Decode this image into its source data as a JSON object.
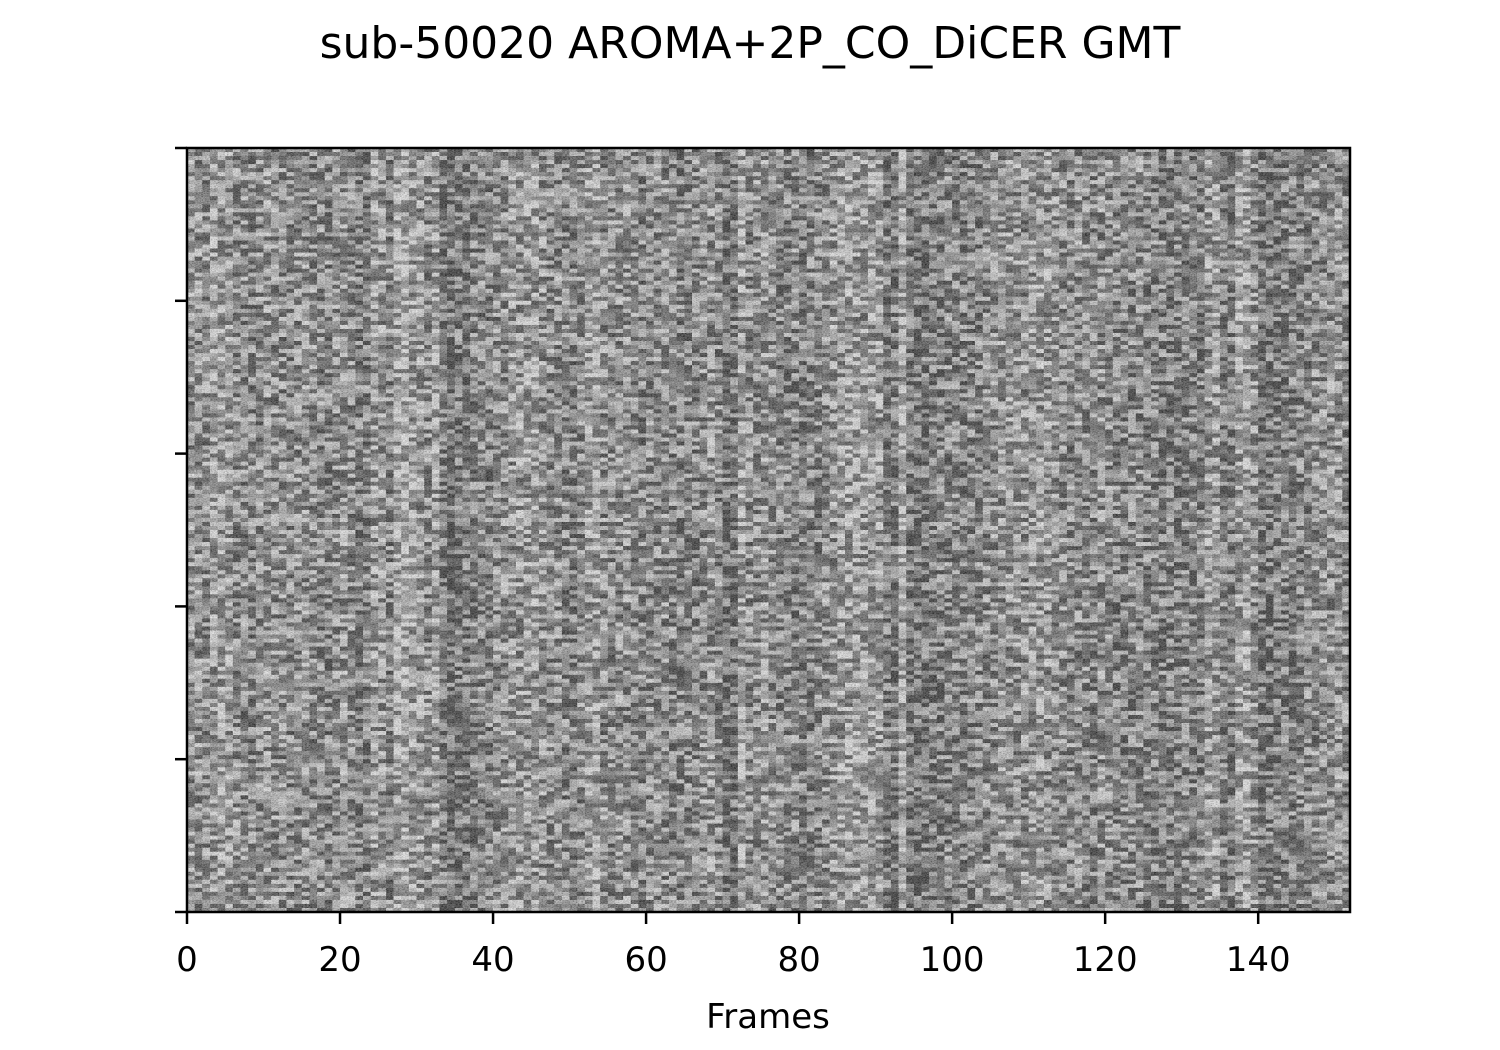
{
  "chart_data": {
    "type": "heatmap",
    "title": "sub-50020 AROMA+2P_CO_DiCER GMT",
    "xlabel": "Frames",
    "ylabel": "",
    "xlim": [
      0,
      152
    ],
    "x_ticks": [
      0,
      20,
      40,
      60,
      80,
      100,
      120,
      140
    ],
    "y_tick_count": 6,
    "y_tick_labels_shown": false,
    "colormap": "gray",
    "colormap_colors": {
      "low": "#000000",
      "high": "#ffffff"
    },
    "grid": false,
    "legend": "none",
    "columns_description": "grayscale carpet plot of voxel time series (rows = voxels, columns = frames)",
    "column_intensity_profile": [
      0.55,
      0.52,
      0.5,
      0.6,
      0.62,
      0.58,
      0.5,
      0.48,
      0.45,
      0.5,
      0.55,
      0.5,
      0.48,
      0.46,
      0.5,
      0.52,
      0.48,
      0.45,
      0.42,
      0.5,
      0.55,
      0.48,
      0.4,
      0.42,
      0.6,
      0.55,
      0.45,
      0.7,
      0.72,
      0.62,
      0.55,
      0.5,
      0.62,
      0.35,
      0.32,
      0.38,
      0.36,
      0.42,
      0.45,
      0.4,
      0.48,
      0.52,
      0.55,
      0.56,
      0.6,
      0.58,
      0.52,
      0.48,
      0.5,
      0.45,
      0.42,
      0.46,
      0.62,
      0.65,
      0.5,
      0.48,
      0.5,
      0.52,
      0.48,
      0.46,
      0.5,
      0.48,
      0.5,
      0.45,
      0.42,
      0.44,
      0.46,
      0.5,
      0.55,
      0.48,
      0.3,
      0.32,
      0.68,
      0.48,
      0.5,
      0.55,
      0.5,
      0.45,
      0.42,
      0.46,
      0.4,
      0.42,
      0.44,
      0.5,
      0.55,
      0.6,
      0.62,
      0.6,
      0.58,
      0.64,
      0.6,
      0.38,
      0.35,
      0.7,
      0.32,
      0.3,
      0.34,
      0.36,
      0.4,
      0.45,
      0.42,
      0.4,
      0.44,
      0.46,
      0.48,
      0.5,
      0.52,
      0.55,
      0.54,
      0.52,
      0.56,
      0.58,
      0.55,
      0.52,
      0.5,
      0.48,
      0.5,
      0.46,
      0.44,
      0.5,
      0.48,
      0.45,
      0.44,
      0.46,
      0.48,
      0.44,
      0.42,
      0.4,
      0.38,
      0.4,
      0.44,
      0.42,
      0.4,
      0.58,
      0.62,
      0.4,
      0.36,
      0.62,
      0.66,
      0.52,
      0.3,
      0.34,
      0.36,
      0.4,
      0.42,
      0.44,
      0.46,
      0.48,
      0.5,
      0.5,
      0.52,
      0.5
    ]
  }
}
